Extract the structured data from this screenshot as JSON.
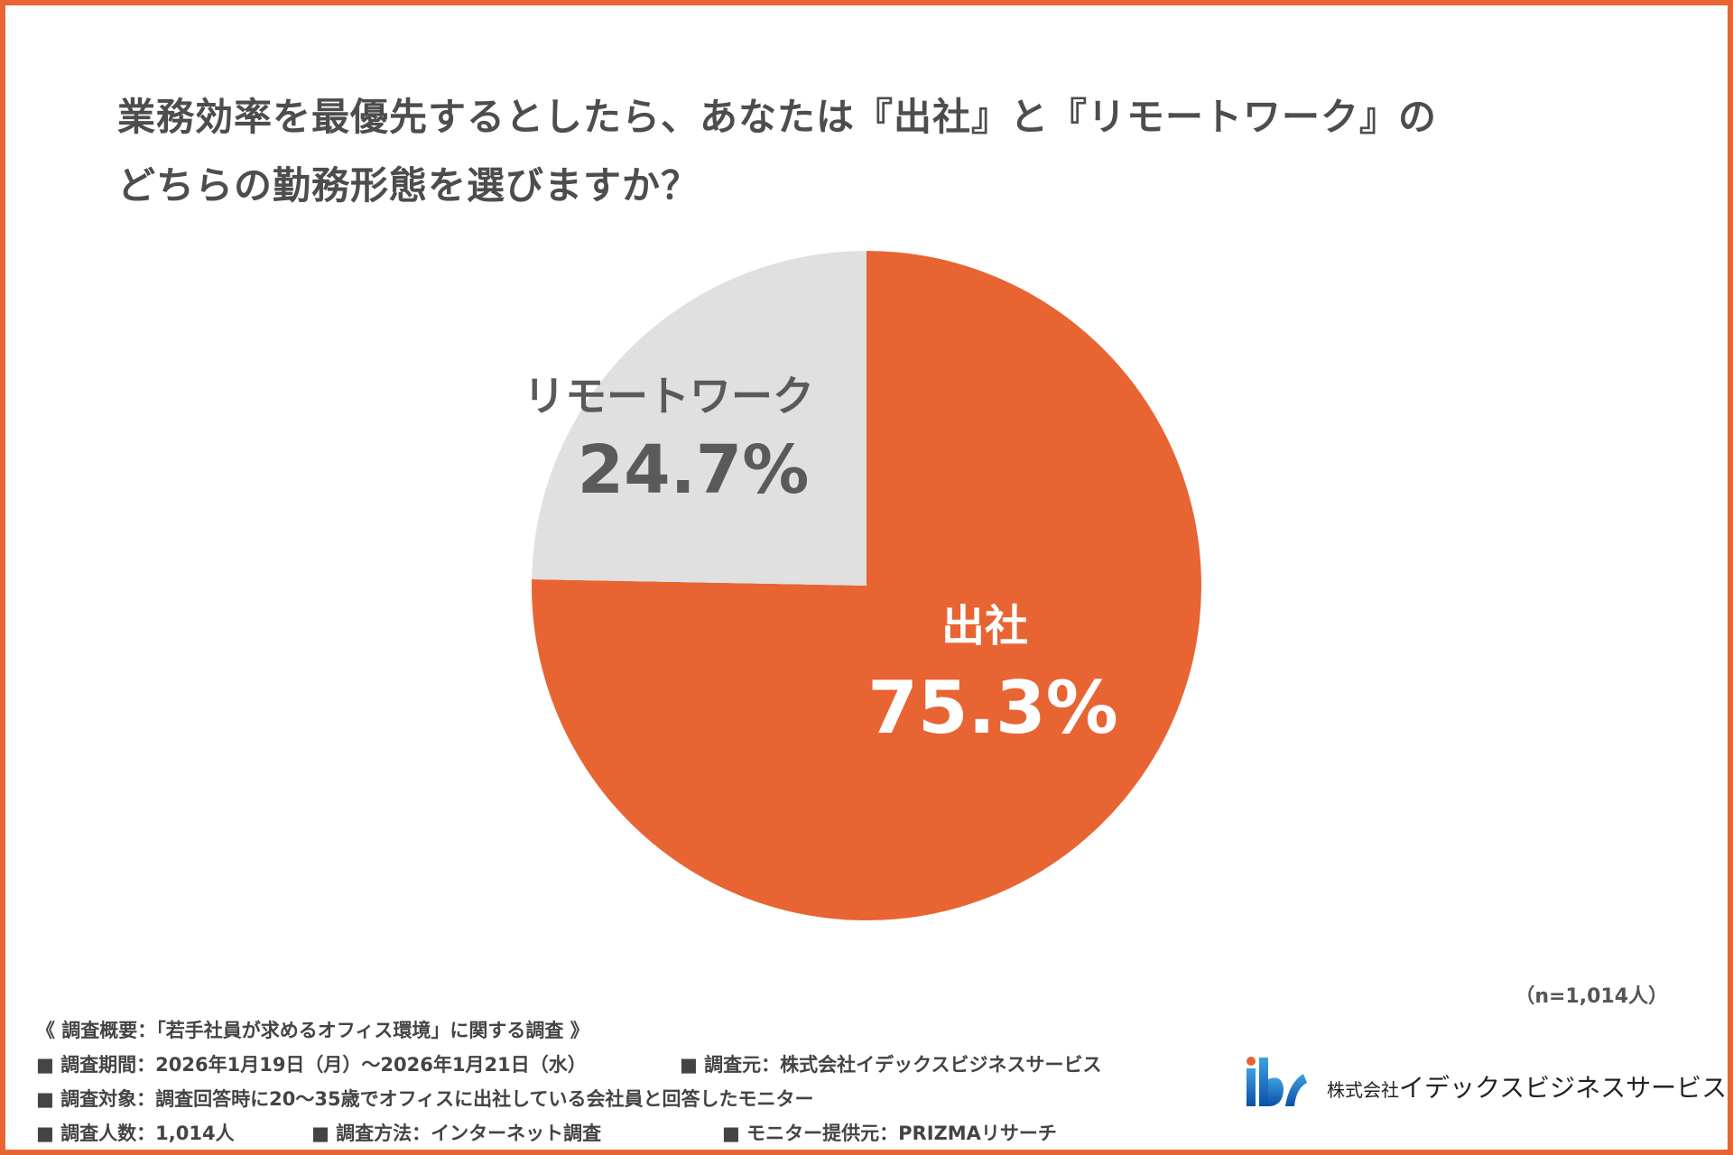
{
  "chart_data": {
    "type": "pie",
    "title": "業務効率を最優先するとしたら、あなたは『出社』と『リモートワーク』のどちらの勤務形態を選びますか？",
    "title_lines": [
      "業務効率を最優先するとしたら、あなたは『出社』と『リモートワーク』の",
      "どちらの勤務形態を選びますか？"
    ],
    "slices": [
      {
        "label": "出社",
        "value": 75.3,
        "value_label": "75.3%",
        "color": "#E86433",
        "text_color": "#ffffff"
      },
      {
        "label": "リモートワーク",
        "value": 24.7,
        "value_label": "24.7%",
        "color": "#E0E0E0",
        "text_color": "#5a5a5a"
      }
    ],
    "sample_note": "（n=1,014人）"
  },
  "footer": {
    "heading": "《 調査概要：「若手社員が求めるオフィス環境」に関する調査 》",
    "period": "■ 調査期間：2026年1月19日（月）～2026年1月21日（水）",
    "source": "■ 調査元：株式会社イデックスビジネスサービス",
    "target": "■ 調査対象：調査回答時に20～35歳でオフィスに出社している会社員と回答したモニター",
    "count": "■ 調査人数：1,014人",
    "method": "■ 調査方法：インターネット調査",
    "provider": "■ モニター提供元：PRIZMAリサーチ"
  },
  "logo": {
    "mark": "ibs",
    "company_prefix": "株式会社",
    "company_name": "イデックスビジネスサービス"
  }
}
